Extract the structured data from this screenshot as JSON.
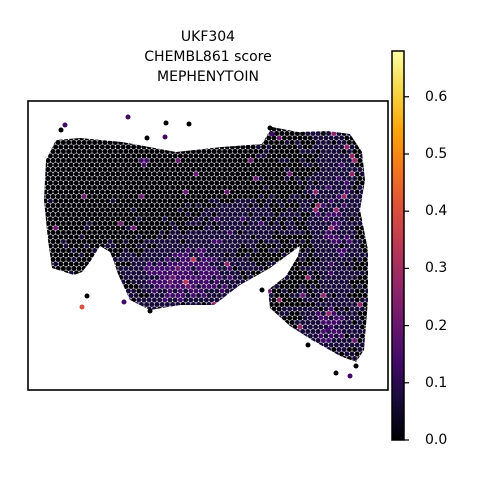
{
  "chart_data": {
    "type": "scatter",
    "title_lines": [
      "UKF304",
      "CHEMBL861 score",
      "MEPHENYTOIN"
    ],
    "xlabel": "",
    "ylabel": "",
    "axes_ticks": false,
    "colormap": "inferno",
    "colorbar": {
      "vmin": 0.0,
      "vmax": 0.68,
      "ticks": [
        "0.0",
        "0.1",
        "0.2",
        "0.3",
        "0.4",
        "0.5",
        "0.6"
      ],
      "tick_values": [
        0.0,
        0.1,
        0.2,
        0.3,
        0.4,
        0.5,
        0.6
      ]
    },
    "description_note": "hex-grid spatial spots colored by score",
    "max_score": 0.6,
    "majority_score_range": [
      0.0,
      0.1
    ]
  }
}
